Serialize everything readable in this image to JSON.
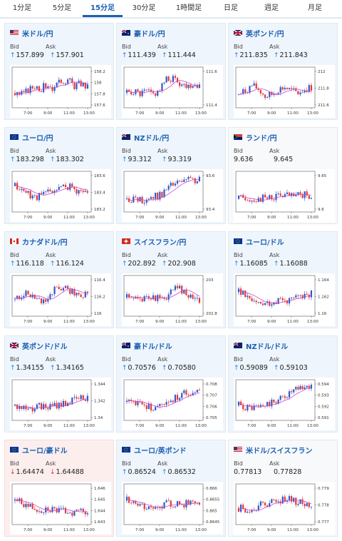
{
  "colors": {
    "accent": "#1a5fb4",
    "up": "#2a7fd1",
    "down": "#d12a2a",
    "bull": "#3057c8",
    "bear": "#e23a3a",
    "ma": "#cc44cc"
  },
  "tabs": [
    "1分足",
    "5分足",
    "15分足",
    "30分足",
    "1時間足",
    "日足",
    "週足",
    "月足"
  ],
  "active_tab": 2,
  "labels": {
    "bid": "Bid",
    "ask": "Ask"
  },
  "pairs": [
    {
      "name": "米ドル/円",
      "flag": "us",
      "bid": "157.899",
      "ask": "157.901",
      "dir": "up",
      "ylabels": [
        "158.2",
        "158",
        "157.8",
        "157.6"
      ],
      "xlabels": [
        "7:00",
        "9:00",
        "11:00",
        "13:00"
      ],
      "seed": 3,
      "shape": [
        0.35,
        0.3,
        0.42,
        0.55,
        0.48,
        0.6,
        0.45,
        0.7,
        0.72,
        0.55,
        0.62,
        0.5
      ]
    },
    {
      "name": "豪ドル/円",
      "flag": "au",
      "bid": "111.439",
      "ask": "111.444",
      "dir": "up",
      "ylabels": [
        "111.6",
        "111.4"
      ],
      "xlabels": [
        "7:00",
        "9:00",
        "11:00",
        "13:00"
      ],
      "seed": 5,
      "shape": [
        0.35,
        0.4,
        0.3,
        0.38,
        0.3,
        0.45,
        0.7,
        0.75,
        0.62,
        0.55,
        0.6,
        0.58
      ]
    },
    {
      "name": "英ポンド/円",
      "flag": "gb",
      "bid": "211.835",
      "ask": "211.843",
      "dir": "up",
      "ylabels": [
        "212",
        "211.8",
        "211.6"
      ],
      "xlabels": [
        "7:00",
        "9:00",
        "11:00",
        "13:00"
      ],
      "seed": 7,
      "shape": [
        0.3,
        0.4,
        0.55,
        0.45,
        0.25,
        0.3,
        0.45,
        0.5,
        0.4,
        0.35,
        0.45,
        0.5
      ]
    },
    {
      "name": "ユーロ/円",
      "flag": "eu",
      "bid": "183.298",
      "ask": "183.302",
      "dir": "up",
      "ylabels": [
        "183.6",
        "183.4",
        "183.2"
      ],
      "xlabels": [
        "7:00",
        "9:00",
        "11:00",
        "13:00"
      ],
      "seed": 11,
      "shape": [
        0.65,
        0.55,
        0.45,
        0.35,
        0.4,
        0.5,
        0.55,
        0.6,
        0.65,
        0.55,
        0.5,
        0.5
      ]
    },
    {
      "name": "NZドル/円",
      "flag": "nz",
      "bid": "93.312",
      "ask": "93.319",
      "dir": "up",
      "ylabels": [
        "93.6",
        "93.4"
      ],
      "xlabels": [
        "7:00",
        "9:00",
        "11:00",
        "13:00"
      ],
      "seed": 13,
      "shape": [
        0.3,
        0.3,
        0.25,
        0.3,
        0.35,
        0.4,
        0.55,
        0.7,
        0.75,
        0.8,
        0.82,
        0.8
      ]
    },
    {
      "name": "ランド/円",
      "flag": "za",
      "bid": "9.636",
      "ask": "9.645",
      "dir": "none",
      "ylabels": [
        "9.65",
        "9.6"
      ],
      "xlabels": [
        "7:00",
        "9:00",
        "11:00",
        "13:00"
      ],
      "seed": 17,
      "shape": [
        0.3,
        0.35,
        0.3,
        0.28,
        0.32,
        0.35,
        0.38,
        0.4,
        0.36,
        0.38,
        0.4,
        0.38
      ]
    },
    {
      "name": "カナダドル/円",
      "flag": "ca",
      "bid": "116.118",
      "ask": "116.124",
      "dir": "up",
      "ylabels": [
        "116.4",
        "116.2",
        "116"
      ],
      "xlabels": [
        "7:00",
        "9:00",
        "11:00",
        "13:00"
      ],
      "seed": 19,
      "shape": [
        0.4,
        0.5,
        0.55,
        0.45,
        0.35,
        0.45,
        0.65,
        0.7,
        0.68,
        0.6,
        0.55,
        0.5
      ]
    },
    {
      "name": "スイスフラン/円",
      "flag": "ch",
      "bid": "202.892",
      "ask": "202.908",
      "dir": "up",
      "ylabels": [
        "203",
        "202.8"
      ],
      "xlabels": [
        "7:00",
        "9:00",
        "11:00",
        "13:00"
      ],
      "seed": 23,
      "shape": [
        0.45,
        0.4,
        0.35,
        0.45,
        0.5,
        0.4,
        0.45,
        0.65,
        0.7,
        0.55,
        0.45,
        0.4
      ]
    },
    {
      "name": "ユーロ/ドル",
      "flag": "eu",
      "bid": "1.16085",
      "ask": "1.16088",
      "dir": "up",
      "ylabels": [
        "1.164",
        "1.162",
        "1.16"
      ],
      "xlabels": [
        "7:00",
        "9:00",
        "11:00",
        "13:00"
      ],
      "seed": 29,
      "shape": [
        0.6,
        0.55,
        0.4,
        0.3,
        0.3,
        0.35,
        0.4,
        0.38,
        0.4,
        0.45,
        0.5,
        0.55
      ]
    },
    {
      "name": "英ポンド/ドル",
      "flag": "gb",
      "bid": "1.34155",
      "ask": "1.34165",
      "dir": "up",
      "ylabels": [
        "1.344",
        "1.342",
        "1.34"
      ],
      "xlabels": [
        "7:00",
        "9:00",
        "11:00",
        "13:00"
      ],
      "seed": 31,
      "shape": [
        0.35,
        0.3,
        0.28,
        0.3,
        0.32,
        0.3,
        0.35,
        0.4,
        0.45,
        0.5,
        0.55,
        0.6
      ]
    },
    {
      "name": "豪ドル/ドル",
      "flag": "au",
      "bid": "0.70576",
      "ask": "0.70580",
      "dir": "up",
      "ylabels": [
        "0.708",
        "0.707",
        "0.706",
        "0.705"
      ],
      "xlabels": [
        "7:00",
        "9:00",
        "11:00",
        "13:00"
      ],
      "seed": 37,
      "shape": [
        0.45,
        0.4,
        0.35,
        0.3,
        0.3,
        0.35,
        0.5,
        0.55,
        0.6,
        0.7,
        0.75,
        0.78
      ]
    },
    {
      "name": "NZドル/ドル",
      "flag": "nz",
      "bid": "0.59089",
      "ask": "0.59103",
      "dir": "up",
      "ylabels": [
        "0.594",
        "0.593",
        "0.592",
        "0.591"
      ],
      "xlabels": [
        "7:00",
        "9:00",
        "11:00",
        "13:00"
      ],
      "seed": 41,
      "shape": [
        0.35,
        0.3,
        0.28,
        0.3,
        0.35,
        0.4,
        0.5,
        0.6,
        0.7,
        0.78,
        0.85,
        0.88
      ]
    },
    {
      "name": "ユーロ/豪ドル",
      "flag": "eu",
      "bid": "1.64474",
      "ask": "1.64488",
      "dir": "down",
      "ylabels": [
        "1.646",
        "1.645",
        "1.644",
        "1.643"
      ],
      "xlabels": [
        "7:00",
        "9:00",
        "11:00",
        "13:00"
      ],
      "seed": 43,
      "shape": [
        0.6,
        0.55,
        0.45,
        0.4,
        0.35,
        0.4,
        0.35,
        0.3,
        0.32,
        0.28,
        0.35,
        0.3
      ]
    },
    {
      "name": "ユーロ/英ポンド",
      "flag": "eu",
      "bid": "0.86524",
      "ask": "0.86532",
      "dir": "up",
      "ylabels": [
        "0.866",
        "0.8655",
        "0.865",
        "0.8645"
      ],
      "xlabels": [
        "7:00",
        "9:00",
        "11:00",
        "13:00"
      ],
      "seed": 47,
      "shape": [
        0.6,
        0.55,
        0.45,
        0.35,
        0.4,
        0.45,
        0.5,
        0.48,
        0.5,
        0.52,
        0.5,
        0.48
      ]
    },
    {
      "name": "米ドル/スイスフラン",
      "flag": "us",
      "bid": "0.77813",
      "ask": "0.77828",
      "dir": "none",
      "ylabels": [
        "0.779",
        "0.778",
        "0.777"
      ],
      "xlabels": [
        "7:00",
        "9:00",
        "11:00",
        "13:00"
      ],
      "seed": 53,
      "shape": [
        0.4,
        0.35,
        0.4,
        0.45,
        0.5,
        0.55,
        0.6,
        0.65,
        0.6,
        0.55,
        0.5,
        0.45
      ]
    }
  ]
}
